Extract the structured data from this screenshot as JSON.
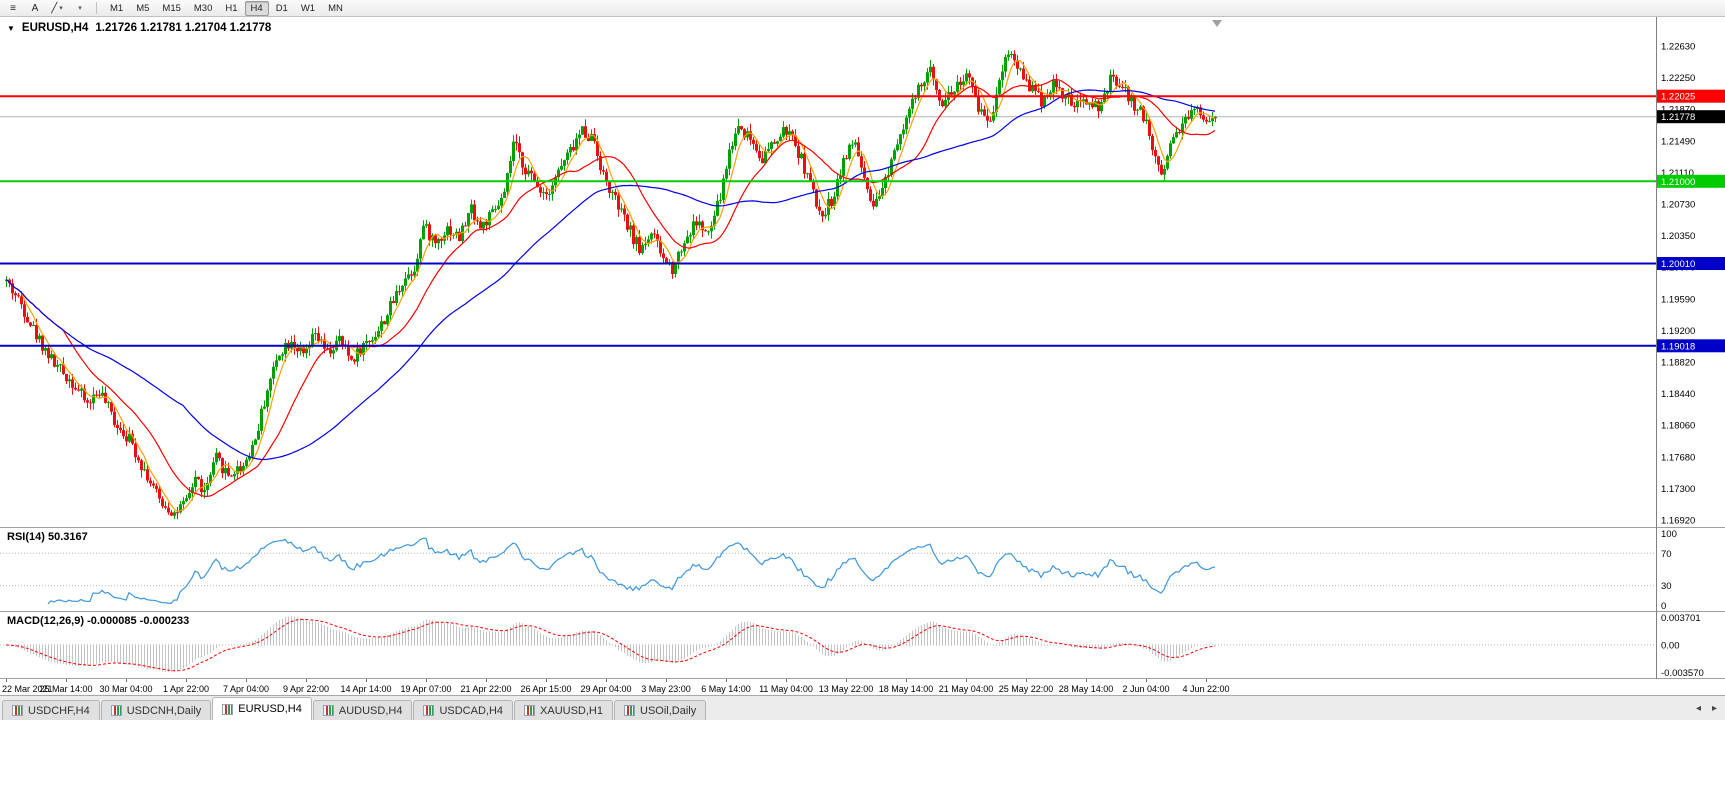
{
  "header": {
    "symbol_title": "EURUSD,H4",
    "ohlc": "1.21726 1.21781 1.21704 1.21778",
    "collapse_icon": "▼"
  },
  "toolbar": {
    "charts_icon_glyph": "≡",
    "text_tool_label": "A",
    "draw_tool_glyph": "╱",
    "caret_glyph": "▾",
    "timeframes": [
      {
        "label": "M1"
      },
      {
        "label": "M5"
      },
      {
        "label": "M15"
      },
      {
        "label": "M30"
      },
      {
        "label": "H1"
      },
      {
        "label": "H4",
        "active": true
      },
      {
        "label": "D1"
      },
      {
        "label": "W1"
      },
      {
        "label": "MN"
      }
    ]
  },
  "chart_data": {
    "type": "candlestick",
    "symbol": "EURUSD",
    "timeframe": "H4",
    "y_axis": {
      "top_value": 1.2263,
      "bottom_value": 1.1692,
      "labels": [
        "1.22630",
        "1.22250",
        "1.21870",
        "1.21490",
        "1.21110",
        "1.20730",
        "1.20350",
        "1.19970",
        "1.19590",
        "1.19200",
        "1.18820",
        "1.18440",
        "1.18060",
        "1.17680",
        "1.17300",
        "1.16920"
      ]
    },
    "x_axis": {
      "labels": [
        "22 Mar 2021",
        "25 Mar 14:00",
        "30 Mar 04:00",
        "1 Apr 22:00",
        "7 Apr 04:00",
        "9 Apr 22:00",
        "14 Apr 14:00",
        "19 Apr 07:00",
        "21 Apr 22:00",
        "26 Apr 15:00",
        "29 Apr 04:00",
        "3 May 23:00",
        "6 May 14:00",
        "11 May 04:00",
        "13 May 22:00",
        "18 May 14:00",
        "21 May 04:00",
        "25 May 22:00",
        "28 May 14:00",
        "2 Jun 04:00",
        "4 Jun 22:00"
      ],
      "bars_per_tick": 20
    },
    "candles": {
      "count": 404,
      "seed": 42,
      "up_color": "#00A000",
      "down_color": "#E81010",
      "keypoints": [
        [
          0,
          1.198
        ],
        [
          5,
          1.1952
        ],
        [
          10,
          1.1915
        ],
        [
          16,
          1.188
        ],
        [
          22,
          1.1858
        ],
        [
          27,
          1.1832
        ],
        [
          31,
          1.1848
        ],
        [
          36,
          1.1812
        ],
        [
          41,
          1.179
        ],
        [
          46,
          1.1752
        ],
        [
          51,
          1.1716
        ],
        [
          56,
          1.17
        ],
        [
          60,
          1.1712
        ],
        [
          63,
          1.1744
        ],
        [
          66,
          1.1724
        ],
        [
          70,
          1.1766
        ],
        [
          74,
          1.1746
        ],
        [
          79,
          1.1758
        ],
        [
          83,
          1.179
        ],
        [
          87,
          1.185
        ],
        [
          91,
          1.1895
        ],
        [
          95,
          1.191
        ],
        [
          99,
          1.1888
        ],
        [
          103,
          1.1915
        ],
        [
          107,
          1.1892
        ],
        [
          111,
          1.1908
        ],
        [
          115,
          1.1885
        ],
        [
          119,
          1.1902
        ],
        [
          124,
          1.192
        ],
        [
          128,
          1.1948
        ],
        [
          132,
          1.198
        ],
        [
          136,
          1.1996
        ],
        [
          139,
          1.2046
        ],
        [
          143,
          1.2026
        ],
        [
          147,
          1.2044
        ],
        [
          151,
          1.2032
        ],
        [
          155,
          1.2068
        ],
        [
          158,
          1.2044
        ],
        [
          162,
          1.206
        ],
        [
          166,
          1.2082
        ],
        [
          169,
          1.2146
        ],
        [
          172,
          1.2122
        ],
        [
          176,
          1.2098
        ],
        [
          180,
          1.2086
        ],
        [
          184,
          1.2112
        ],
        [
          188,
          1.2136
        ],
        [
          192,
          1.2162
        ],
        [
          196,
          1.215
        ],
        [
          199,
          1.2106
        ],
        [
          203,
          1.2076
        ],
        [
          207,
          1.2046
        ],
        [
          211,
          1.2018
        ],
        [
          215,
          1.2038
        ],
        [
          219,
          1.2006
        ],
        [
          222,
          1.1996
        ],
        [
          226,
          1.2028
        ],
        [
          230,
          1.2052
        ],
        [
          234,
          1.2034
        ],
        [
          238,
          1.2082
        ],
        [
          241,
          1.2136
        ],
        [
          244,
          1.2168
        ],
        [
          248,
          1.2152
        ],
        [
          252,
          1.2128
        ],
        [
          256,
          1.2146
        ],
        [
          260,
          1.2162
        ],
        [
          264,
          1.2136
        ],
        [
          268,
          1.2098
        ],
        [
          271,
          1.2058
        ],
        [
          275,
          1.2076
        ],
        [
          279,
          1.2126
        ],
        [
          283,
          1.2148
        ],
        [
          286,
          1.2098
        ],
        [
          289,
          1.2062
        ],
        [
          293,
          1.2102
        ],
        [
          297,
          1.2152
        ],
        [
          301,
          1.2186
        ],
        [
          305,
          1.2216
        ],
        [
          308,
          1.2232
        ],
        [
          312,
          1.2196
        ],
        [
          316,
          1.2212
        ],
        [
          320,
          1.2228
        ],
        [
          324,
          1.219
        ],
        [
          328,
          1.2172
        ],
        [
          331,
          1.2226
        ],
        [
          334,
          1.2258
        ],
        [
          337,
          1.224
        ],
        [
          341,
          1.2216
        ],
        [
          345,
          1.2198
        ],
        [
          349,
          1.2218
        ],
        [
          353,
          1.22
        ],
        [
          357,
          1.219
        ],
        [
          361,
          1.2196
        ],
        [
          365,
          1.2188
        ],
        [
          368,
          1.2222
        ],
        [
          371,
          1.2218
        ],
        [
          375,
          1.2196
        ],
        [
          379,
          1.218
        ],
        [
          382,
          1.2142
        ],
        [
          385,
          1.2108
        ],
        [
          388,
          1.2146
        ],
        [
          391,
          1.2166
        ],
        [
          394,
          1.218
        ],
        [
          397,
          1.2188
        ],
        [
          400,
          1.2176
        ],
        [
          403,
          1.21778
        ]
      ]
    },
    "moving_averages": [
      {
        "name": "fast-ma-line",
        "period": 6,
        "color": "#FFA000"
      },
      {
        "name": "mid-ma-line",
        "period": 20,
        "color": "#FF0000"
      },
      {
        "name": "slow-ma-line",
        "period": 60,
        "color": "#0000E6"
      }
    ],
    "levels": [
      {
        "label": "1.22025",
        "value": 1.22025,
        "color": "#FF0000"
      },
      {
        "label": "1.21000",
        "value": 1.21,
        "color": "#00CC00"
      },
      {
        "label": "1.20010",
        "value": 1.2001,
        "color": "#0000C8"
      },
      {
        "label": "1.19018",
        "value": 1.19018,
        "color": "#0000C8"
      }
    ],
    "current_price": {
      "label": "1.21778",
      "value": 1.21778,
      "line_color": "#B4B4B4",
      "badge_color": "#000000"
    },
    "indicators": {
      "rsi": {
        "label": "RSI(14) 50.3167",
        "period": 14,
        "color": "#3C96DC",
        "axis_labels": [
          "100",
          "70",
          "30",
          "0"
        ],
        "level_lines": [
          70,
          30
        ]
      },
      "macd": {
        "label": "MACD(12,26,9) -0.000085 -0.000233",
        "fast": 12,
        "slow": 26,
        "signal": 9,
        "histogram_color": "#C4C4C4",
        "signal_color": "#FF0000",
        "axis_labels": [
          "0.003701",
          "0.00",
          "-0.003570"
        ]
      }
    }
  },
  "tabs": [
    {
      "label": "USDCHF,H4"
    },
    {
      "label": "USDCNH,Daily"
    },
    {
      "label": "EURUSD,H4",
      "active": true
    },
    {
      "label": "AUDUSD,H4"
    },
    {
      "label": "USDCAD,H4"
    },
    {
      "label": "XAUUSD,H1"
    },
    {
      "label": "USOil,Daily"
    }
  ],
  "tab_scroll": {
    "left": "◂",
    "right": "▸"
  }
}
